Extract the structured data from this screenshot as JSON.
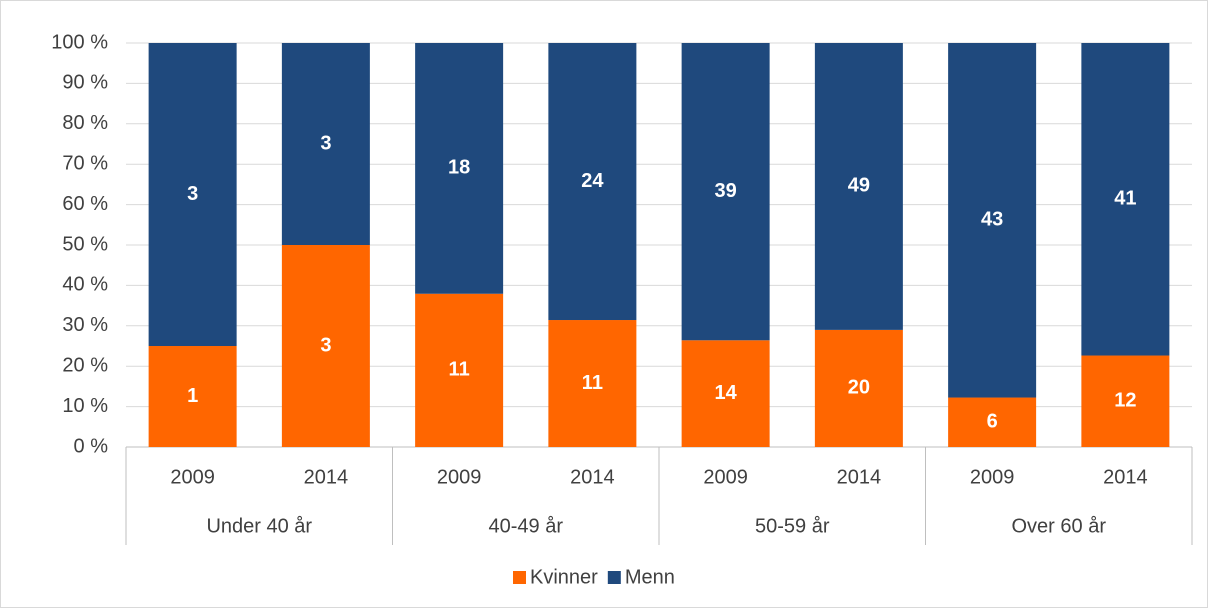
{
  "chart_data": {
    "type": "bar",
    "stacking": "percent",
    "categories": [
      "2009",
      "2014",
      "2009",
      "2014",
      "2009",
      "2014",
      "2009",
      "2014"
    ],
    "category_groups": [
      "Under 40 år",
      "40-49 år",
      "50-59 år",
      "Over 60 år"
    ],
    "series": [
      {
        "name": "Kvinner",
        "color": "#ff6600",
        "values": [
          1,
          3,
          11,
          11,
          14,
          20,
          6,
          12
        ]
      },
      {
        "name": "Menn",
        "color": "#1f497d",
        "values": [
          3,
          3,
          18,
          24,
          39,
          49,
          43,
          41
        ]
      }
    ],
    "ylim": [
      0,
      100
    ],
    "yticks": [
      {
        "value": 0,
        "label": "0 %"
      },
      {
        "value": 10,
        "label": "10 %"
      },
      {
        "value": 20,
        "label": "20 %"
      },
      {
        "value": 30,
        "label": "30 %"
      },
      {
        "value": 40,
        "label": "40 %"
      },
      {
        "value": 50,
        "label": "50 %"
      },
      {
        "value": 60,
        "label": "60 %"
      },
      {
        "value": 70,
        "label": "70 %"
      },
      {
        "value": 80,
        "label": "80 %"
      },
      {
        "value": 90,
        "label": "90 %"
      },
      {
        "value": 100,
        "label": "100 %"
      }
    ],
    "grid": true,
    "legend": "bottom"
  }
}
